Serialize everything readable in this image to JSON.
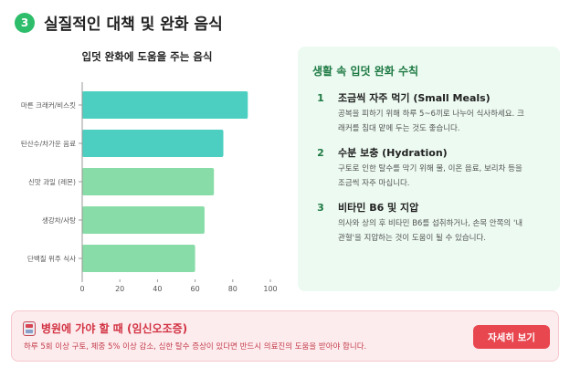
{
  "header": {
    "step_number": "3",
    "title": "실질적인 대책 및 완화 음식"
  },
  "chart_data": {
    "type": "bar",
    "orientation": "horizontal",
    "title": "입덧 완화에 도움을 주는 음식",
    "categories": [
      "마른 크래커/비스킷",
      "탄산수/차가운 음료",
      "신맛 과일 (레몬)",
      "생강차/사탕",
      "단백질 위주 식사"
    ],
    "values": [
      88,
      75,
      70,
      65,
      60
    ],
    "xlim": [
      0,
      100
    ],
    "xticks": [
      0,
      20,
      40,
      60,
      80,
      100
    ],
    "colors": [
      "#4ccfc0",
      "#4ccfc0",
      "#88dca7",
      "#88dca7",
      "#88dca7"
    ],
    "grid": false,
    "legend": "none"
  },
  "tips": {
    "title": "생활 속 입덧 완화 수칙",
    "items": [
      {
        "number": "1",
        "heading": "조금씩 자주 먹기 (Small Meals)",
        "lines": [
          "공복을 피하기 위해 하루 5~6끼로 나누어 식사하세요. 크",
          "래커를 침대 맡에 두는 것도 좋습니다."
        ]
      },
      {
        "number": "2",
        "heading": "수분 보충 (Hydration)",
        "lines": [
          "구토로 인한 탈수를 막기 위해 물, 이온 음료, 보리차 등을",
          "조금씩 자주 마십니다."
        ]
      },
      {
        "number": "3",
        "heading": "비타민 B6 및 지압",
        "lines": [
          "의사와 상의 후 비타민 B6를 섭취하거나, 손목 안쪽의 '내",
          "관혈'을 지압하는 것이 도움이 될 수 있습니다."
        ]
      }
    ]
  },
  "alert": {
    "title": "병원에 가야 할 때 (임신오조증)",
    "description": "하루 5회 이상 구토, 체중 5% 이상 감소, 심한 탈수 증상이 있다면 반드시 의료진의 도움을 받아야 합니다.",
    "button_label": "자세히 보기",
    "icon": "hospital-icon"
  }
}
